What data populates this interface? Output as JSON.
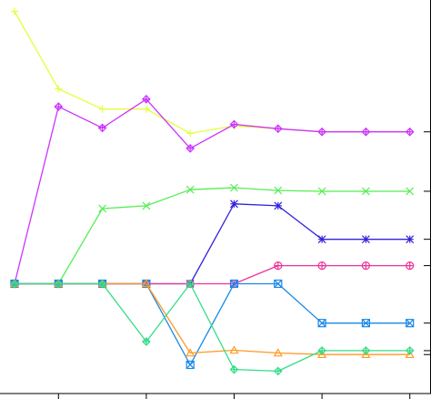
{
  "chart_data": {
    "type": "line",
    "x": [
      0,
      1,
      2,
      3,
      4,
      5,
      6,
      7,
      8,
      9
    ],
    "ylim": [
      0,
      100
    ],
    "xlim": [
      -0.2,
      9.45
    ],
    "grid": false,
    "legend": "none",
    "x_ticks": [
      1,
      3,
      5,
      7,
      9
    ],
    "right_ticks": [
      66.5,
      51.4,
      39.2,
      32.5,
      17.9,
      10.9,
      9.9
    ],
    "series": [
      {
        "marker": "plus",
        "color": "#e4ff3a",
        "values": [
          97.1,
          77.4,
          72.3,
          72.3,
          66.1,
          68.0,
          67.3,
          66.5,
          66.5,
          66.5
        ]
      },
      {
        "marker": "diamond",
        "color": "#cc33ff",
        "values": [
          27.9,
          72.9,
          67.5,
          74.8,
          62.3,
          68.4,
          67.3,
          66.5,
          66.5,
          66.5
        ]
      },
      {
        "marker": "x",
        "color": "#55ee55",
        "values": [
          27.9,
          27.9,
          47.0,
          47.7,
          51.8,
          52.3,
          51.6,
          51.4,
          51.4,
          51.4
        ]
      },
      {
        "marker": "asterisk",
        "color": "#3322dd",
        "values": [
          27.9,
          27.9,
          27.9,
          27.9,
          27.9,
          48.2,
          47.7,
          39.2,
          39.2,
          39.2
        ]
      },
      {
        "marker": "circle",
        "color": "#ee3399",
        "values": [
          27.9,
          27.9,
          27.9,
          27.9,
          27.9,
          27.9,
          32.5,
          32.5,
          32.5,
          32.5
        ]
      },
      {
        "marker": "boxed-x",
        "color": "#1a88e6",
        "values": [
          27.9,
          27.9,
          27.9,
          27.9,
          7.3,
          27.9,
          27.9,
          17.9,
          17.9,
          17.9
        ]
      },
      {
        "marker": "triangle",
        "color": "#ff9922",
        "values": [
          27.9,
          27.9,
          27.9,
          27.9,
          10.3,
          11.0,
          10.3,
          9.9,
          9.9,
          9.9
        ]
      },
      {
        "marker": "diamond",
        "color": "#33dd88",
        "values": [
          27.9,
          27.9,
          27.9,
          13.2,
          27.9,
          6.1,
          5.7,
          10.9,
          10.9,
          10.9
        ]
      }
    ]
  }
}
